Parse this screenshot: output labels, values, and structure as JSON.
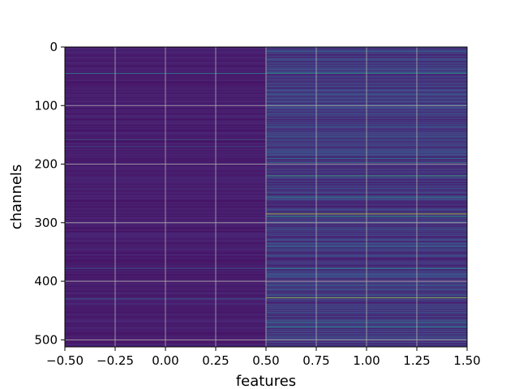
{
  "chart_data": {
    "type": "heatmap",
    "title": "",
    "xlabel": "features",
    "ylabel": "channels",
    "xlim": [
      -0.5,
      1.5
    ],
    "ylim": [
      512,
      0
    ],
    "y_inverted": true,
    "columns": 2,
    "rows": 512,
    "colormap": "viridis",
    "grid": true,
    "x_ticks": [
      -0.5,
      -0.25,
      0.0,
      0.25,
      0.5,
      0.75,
      1.0,
      1.25,
      1.5
    ],
    "x_tick_labels": [
      "−0.50",
      "−0.25",
      "0.00",
      "0.25",
      "0.50",
      "0.75",
      "1.00",
      "1.25",
      "1.50"
    ],
    "y_ticks": [
      0,
      100,
      200,
      300,
      400,
      500
    ],
    "y_tick_labels": [
      "0",
      "100",
      "200",
      "300",
      "400",
      "500"
    ],
    "column_base_level": [
      0.1,
      0.18
    ],
    "highlighted_rows": [
      {
        "row": 45,
        "column": 0,
        "value": 0.45
      },
      {
        "row": 158,
        "column": 0,
        "value": 0.3
      },
      {
        "row": 170,
        "column": 0,
        "value": 0.28
      },
      {
        "row": 378,
        "column": 0,
        "value": 0.3
      },
      {
        "row": 430,
        "column": 0,
        "value": 0.3
      },
      {
        "row": 8,
        "column": 1,
        "value": 0.42
      },
      {
        "row": 45,
        "column": 1,
        "value": 0.55
      },
      {
        "row": 100,
        "column": 1,
        "value": 0.4
      },
      {
        "row": 158,
        "column": 1,
        "value": 0.38
      },
      {
        "row": 190,
        "column": 1,
        "value": 0.45
      },
      {
        "row": 197,
        "column": 1,
        "value": 0.4
      },
      {
        "row": 220,
        "column": 1,
        "value": 0.65
      },
      {
        "row": 256,
        "column": 1,
        "value": 0.5
      },
      {
        "row": 285,
        "column": 1,
        "value": 0.9
      },
      {
        "row": 290,
        "column": 1,
        "value": 0.55
      },
      {
        "row": 340,
        "column": 1,
        "value": 0.4
      },
      {
        "row": 378,
        "column": 1,
        "value": 0.45
      },
      {
        "row": 428,
        "column": 1,
        "value": 0.85
      },
      {
        "row": 470,
        "column": 1,
        "value": 0.45
      },
      {
        "row": 478,
        "column": 1,
        "value": 0.5
      },
      {
        "row": 500,
        "column": 1,
        "value": 0.4
      }
    ]
  }
}
